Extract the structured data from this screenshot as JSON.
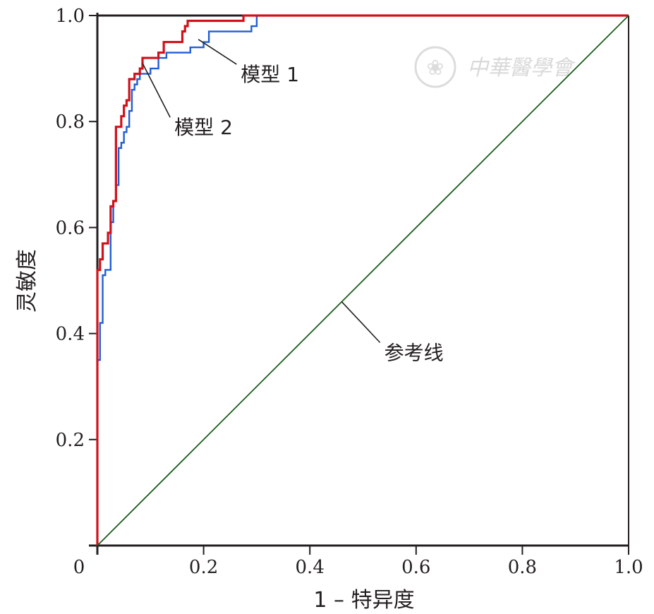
{
  "chart_data": {
    "type": "line",
    "title": "",
    "xlabel": "1 – 特异度",
    "ylabel": "灵敏度",
    "xlim": [
      0,
      1
    ],
    "ylim": [
      0,
      1
    ],
    "grid": false,
    "legend": "none",
    "x_ticks": [
      "0",
      "0.2",
      "0.4",
      "0.6",
      "0.8",
      "1.0"
    ],
    "y_ticks": [
      "0.2",
      "0.4",
      "0.6",
      "0.8",
      "1.0"
    ],
    "series": [
      {
        "name": "模型 1",
        "color": "#1f5fd6",
        "points": [
          [
            0,
            0
          ],
          [
            0,
            0.35
          ],
          [
            0.005,
            0.35
          ],
          [
            0.005,
            0.42
          ],
          [
            0.01,
            0.42
          ],
          [
            0.01,
            0.51
          ],
          [
            0.015,
            0.51
          ],
          [
            0.015,
            0.52
          ],
          [
            0.025,
            0.52
          ],
          [
            0.025,
            0.61
          ],
          [
            0.03,
            0.61
          ],
          [
            0.03,
            0.65
          ],
          [
            0.035,
            0.65
          ],
          [
            0.035,
            0.68
          ],
          [
            0.04,
            0.68
          ],
          [
            0.04,
            0.75
          ],
          [
            0.045,
            0.75
          ],
          [
            0.045,
            0.76
          ],
          [
            0.05,
            0.76
          ],
          [
            0.05,
            0.78
          ],
          [
            0.055,
            0.78
          ],
          [
            0.055,
            0.79
          ],
          [
            0.06,
            0.79
          ],
          [
            0.06,
            0.82
          ],
          [
            0.065,
            0.82
          ],
          [
            0.065,
            0.86
          ],
          [
            0.07,
            0.86
          ],
          [
            0.07,
            0.87
          ],
          [
            0.075,
            0.87
          ],
          [
            0.075,
            0.88
          ],
          [
            0.08,
            0.88
          ],
          [
            0.08,
            0.89
          ],
          [
            0.1,
            0.89
          ],
          [
            0.1,
            0.9
          ],
          [
            0.115,
            0.9
          ],
          [
            0.115,
            0.92
          ],
          [
            0.13,
            0.92
          ],
          [
            0.13,
            0.93
          ],
          [
            0.175,
            0.93
          ],
          [
            0.175,
            0.94
          ],
          [
            0.2,
            0.94
          ],
          [
            0.2,
            0.95
          ],
          [
            0.21,
            0.95
          ],
          [
            0.21,
            0.97
          ],
          [
            0.29,
            0.97
          ],
          [
            0.29,
            0.98
          ],
          [
            0.3,
            0.98
          ],
          [
            0.3,
            1.0
          ],
          [
            1.0,
            1.0
          ]
        ]
      },
      {
        "name": "模型 2",
        "color": "#d0121b",
        "points": [
          [
            0,
            0
          ],
          [
            0,
            0.52
          ],
          [
            0.005,
            0.52
          ],
          [
            0.005,
            0.54
          ],
          [
            0.01,
            0.54
          ],
          [
            0.01,
            0.57
          ],
          [
            0.02,
            0.57
          ],
          [
            0.02,
            0.59
          ],
          [
            0.025,
            0.59
          ],
          [
            0.025,
            0.64
          ],
          [
            0.03,
            0.64
          ],
          [
            0.03,
            0.65
          ],
          [
            0.035,
            0.65
          ],
          [
            0.035,
            0.79
          ],
          [
            0.045,
            0.79
          ],
          [
            0.045,
            0.81
          ],
          [
            0.05,
            0.81
          ],
          [
            0.05,
            0.83
          ],
          [
            0.055,
            0.83
          ],
          [
            0.055,
            0.84
          ],
          [
            0.06,
            0.84
          ],
          [
            0.06,
            0.88
          ],
          [
            0.07,
            0.88
          ],
          [
            0.07,
            0.89
          ],
          [
            0.08,
            0.89
          ],
          [
            0.08,
            0.9
          ],
          [
            0.085,
            0.9
          ],
          [
            0.085,
            0.92
          ],
          [
            0.115,
            0.92
          ],
          [
            0.115,
            0.93
          ],
          [
            0.125,
            0.93
          ],
          [
            0.125,
            0.95
          ],
          [
            0.16,
            0.95
          ],
          [
            0.16,
            0.97
          ],
          [
            0.165,
            0.97
          ],
          [
            0.165,
            0.98
          ],
          [
            0.17,
            0.98
          ],
          [
            0.17,
            0.99
          ],
          [
            0.275,
            0.99
          ],
          [
            0.275,
            1.0
          ],
          [
            1.0,
            1.0
          ]
        ]
      },
      {
        "name": "参考线",
        "color": "#1a5d1a",
        "points": [
          [
            0,
            0
          ],
          [
            1,
            1
          ]
        ]
      }
    ],
    "annotations": [
      {
        "text": "模型 1",
        "target": [
          0.19,
          0.955
        ],
        "label_at": [
          0.27,
          0.9
        ]
      },
      {
        "text": "模型 2",
        "target": [
          0.085,
          0.91
        ],
        "label_at": [
          0.145,
          0.8
        ]
      },
      {
        "text": "参考线",
        "target": [
          0.46,
          0.46
        ],
        "label_at": [
          0.54,
          0.375
        ]
      }
    ]
  },
  "watermark": {
    "text": "中華醫學會",
    "seal_glyph": "❀"
  }
}
